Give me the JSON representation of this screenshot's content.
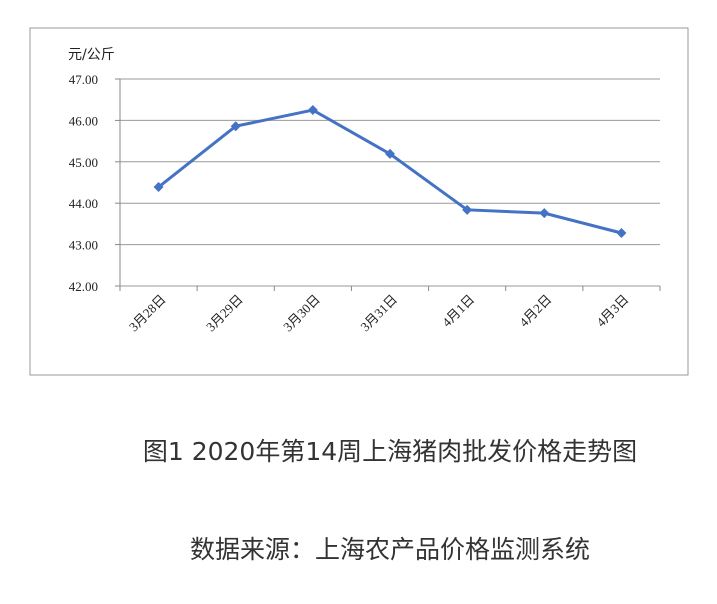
{
  "chart_data": {
    "type": "line",
    "title": "图1 2020年第14周上海猪肉批发价格走势图",
    "source": "数据来源：上海农产品价格监测系统",
    "y_label": "元/公斤",
    "categories": [
      "3月28日",
      "3月29日",
      "3月30日",
      "3月31日",
      "4月1日",
      "4月2日",
      "4月3日"
    ],
    "series": [
      {
        "name": "上海猪肉批发价格",
        "color": "#4472c4",
        "values": [
          44.39,
          45.86,
          46.25,
          45.19,
          43.84,
          43.76,
          43.28
        ]
      }
    ],
    "ylim": [
      42,
      47
    ],
    "yticks": [
      {
        "value": 42,
        "label": "42.00"
      },
      {
        "value": 43,
        "label": "43.00"
      },
      {
        "value": 44,
        "label": "44.00"
      },
      {
        "value": 45,
        "label": "45.00"
      },
      {
        "value": 46,
        "label": "46.00"
      },
      {
        "value": 47,
        "label": "47.00"
      }
    ],
    "grid": true
  }
}
